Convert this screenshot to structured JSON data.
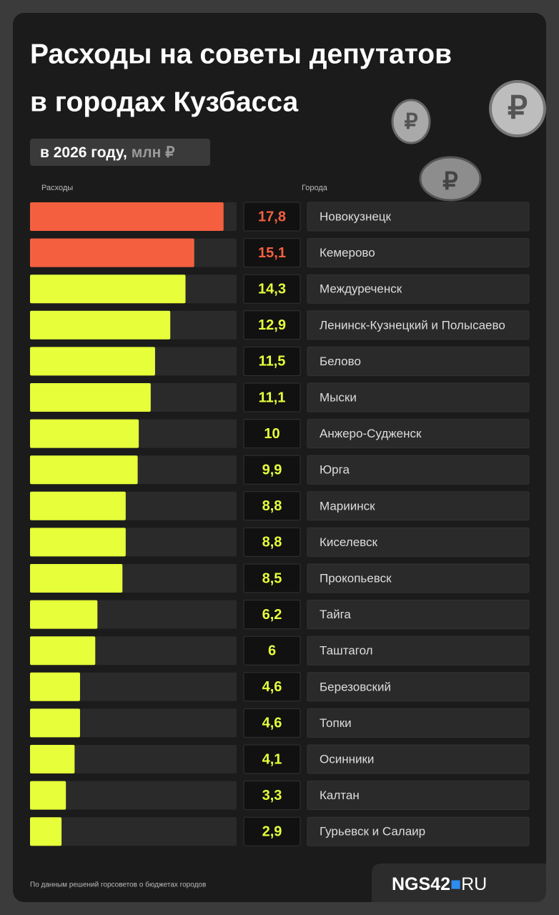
{
  "chart_data": {
    "type": "bar",
    "orientation": "horizontal",
    "title": [
      "Расходы на советы депутатов",
      "в городах Кузбасса"
    ],
    "subtitle": "в 2026 году,",
    "unit": "млн ₽",
    "value_header": "Расходы",
    "category_header": "Города",
    "categories": [
      "Новокузнецк",
      "Кемерово",
      "Междуреченск",
      "Ленинск-Кузнецкий и Полысаево",
      "Белово",
      "Мыски",
      "Анжеро-Судженск",
      "Юрга",
      "Мариинск",
      "Киселевск",
      "Прокопьевск",
      "Тайга",
      "Таштагол",
      "Березовский",
      "Топки",
      "Осинники",
      "Калтан",
      "Гурьевск и Салаир"
    ],
    "values": [
      17.8,
      15.1,
      14.3,
      12.9,
      11.5,
      11.1,
      10,
      9.9,
      8.8,
      8.8,
      8.5,
      6.2,
      6,
      4.6,
      4.6,
      4.1,
      3.3,
      2.9
    ],
    "value_labels": [
      "17,8",
      "15,1",
      "14,3",
      "12,9",
      "11,5",
      "11,1",
      "10",
      "9,9",
      "8,8",
      "8,8",
      "8,5",
      "6,2",
      "6",
      "4,6",
      "4,6",
      "4,1",
      "3,3",
      "2,9"
    ],
    "colors": [
      "#f4603f",
      "#f4603f",
      "#e6ff3a",
      "#e6ff3a",
      "#e6ff3a",
      "#e6ff3a",
      "#e6ff3a",
      "#e6ff3a",
      "#e6ff3a",
      "#e6ff3a",
      "#e6ff3a",
      "#e6ff3a",
      "#e6ff3a",
      "#e6ff3a",
      "#e6ff3a",
      "#e6ff3a",
      "#e6ff3a",
      "#e6ff3a"
    ],
    "xlim": [
      0,
      19
    ],
    "source": "По данным решений горсоветов о бюджетах городов",
    "logo": [
      "NGS42",
      "RU"
    ]
  }
}
